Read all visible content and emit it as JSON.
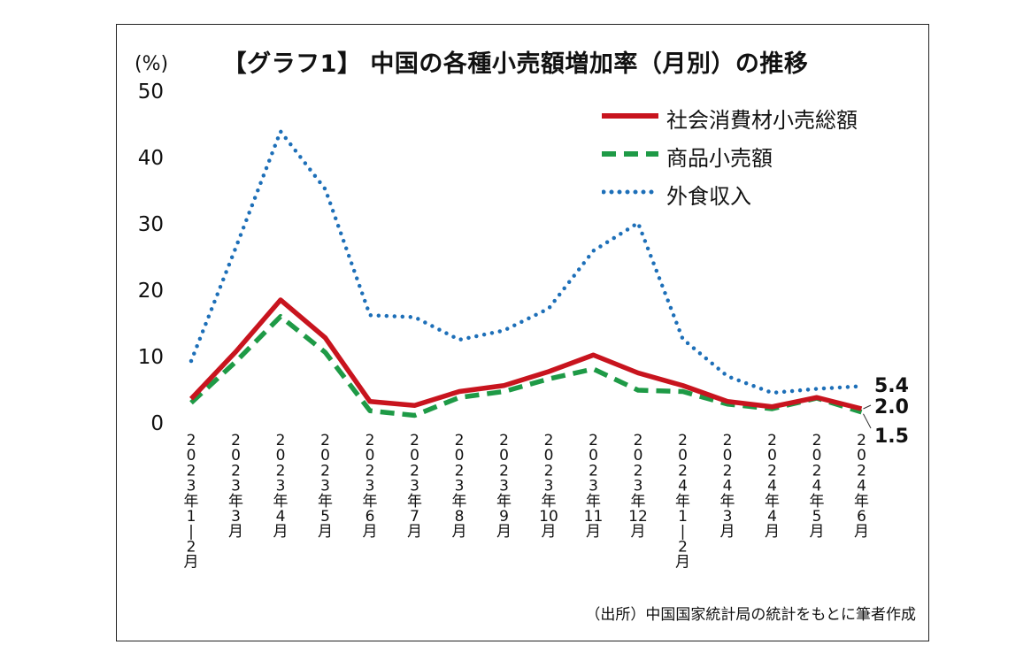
{
  "chart_data": {
    "type": "line",
    "title": "【グラフ1】 中国の各種小売額増加率（月別）の推移",
    "y_unit": "(%)",
    "ylim": [
      0,
      50
    ],
    "yticks": [
      0,
      10,
      20,
      30,
      40,
      50
    ],
    "categories": [
      "2023年1−2月",
      "2023年3月",
      "2023年4月",
      "2023年5月",
      "2023年6月",
      "2023年7月",
      "2023年8月",
      "2023年9月",
      "2023年10月",
      "2023年11月",
      "2023年12月",
      "2024年1−2月",
      "2024年3月",
      "2024年4月",
      "2024年5月",
      "2024年6月"
    ],
    "category_label_chars": [
      [
        "2",
        "0",
        "2",
        "3",
        "年",
        "1",
        "|",
        "2",
        "月"
      ],
      [
        "2",
        "0",
        "2",
        "3",
        "年",
        "3",
        "月"
      ],
      [
        "2",
        "0",
        "2",
        "3",
        "年",
        "4",
        "月"
      ],
      [
        "2",
        "0",
        "2",
        "3",
        "年",
        "5",
        "月"
      ],
      [
        "2",
        "0",
        "2",
        "3",
        "年",
        "6",
        "月"
      ],
      [
        "2",
        "0",
        "2",
        "3",
        "年",
        "7",
        "月"
      ],
      [
        "2",
        "0",
        "2",
        "3",
        "年",
        "8",
        "月"
      ],
      [
        "2",
        "0",
        "2",
        "3",
        "年",
        "9",
        "月"
      ],
      [
        "2",
        "0",
        "2",
        "3",
        "年",
        "10",
        "月"
      ],
      [
        "2",
        "0",
        "2",
        "3",
        "年",
        "11",
        "月"
      ],
      [
        "2",
        "0",
        "2",
        "3",
        "年",
        "12",
        "月"
      ],
      [
        "2",
        "0",
        "2",
        "4",
        "年",
        "1",
        "|",
        "2",
        "月"
      ],
      [
        "2",
        "0",
        "2",
        "4",
        "年",
        "3",
        "月"
      ],
      [
        "2",
        "0",
        "2",
        "4",
        "年",
        "4",
        "月"
      ],
      [
        "2",
        "0",
        "2",
        "4",
        "年",
        "5",
        "月"
      ],
      [
        "2",
        "0",
        "2",
        "4",
        "年",
        "6",
        "月"
      ]
    ],
    "series": [
      {
        "name": "社会消費材小売総額",
        "color": "#c8141e",
        "style": "solid",
        "values": [
          3.5,
          10.6,
          18.4,
          12.7,
          3.1,
          2.5,
          4.6,
          5.5,
          7.6,
          10.1,
          7.4,
          5.5,
          3.1,
          2.3,
          3.7,
          2.0
        ]
      },
      {
        "name": "商品小売額",
        "color": "#1e9a46",
        "style": "dashed",
        "values": [
          2.9,
          9.1,
          15.9,
          10.5,
          1.7,
          1.0,
          3.7,
          4.6,
          6.5,
          8.0,
          4.8,
          4.6,
          2.7,
          2.0,
          3.6,
          1.5
        ]
      },
      {
        "name": "外食収入",
        "color": "#1d6fb8",
        "style": "dotted",
        "values": [
          9.2,
          26.3,
          43.8,
          35.1,
          16.1,
          15.8,
          12.4,
          13.8,
          17.1,
          25.8,
          30.0,
          12.5,
          6.9,
          4.4,
          5.0,
          5.4
        ]
      }
    ],
    "end_labels": [
      "5.4",
      "2.0",
      "1.5"
    ],
    "grid": false,
    "legend_position": "top-right"
  },
  "source": "（出所）中国国家統計局の統計をもとに筆者作成"
}
